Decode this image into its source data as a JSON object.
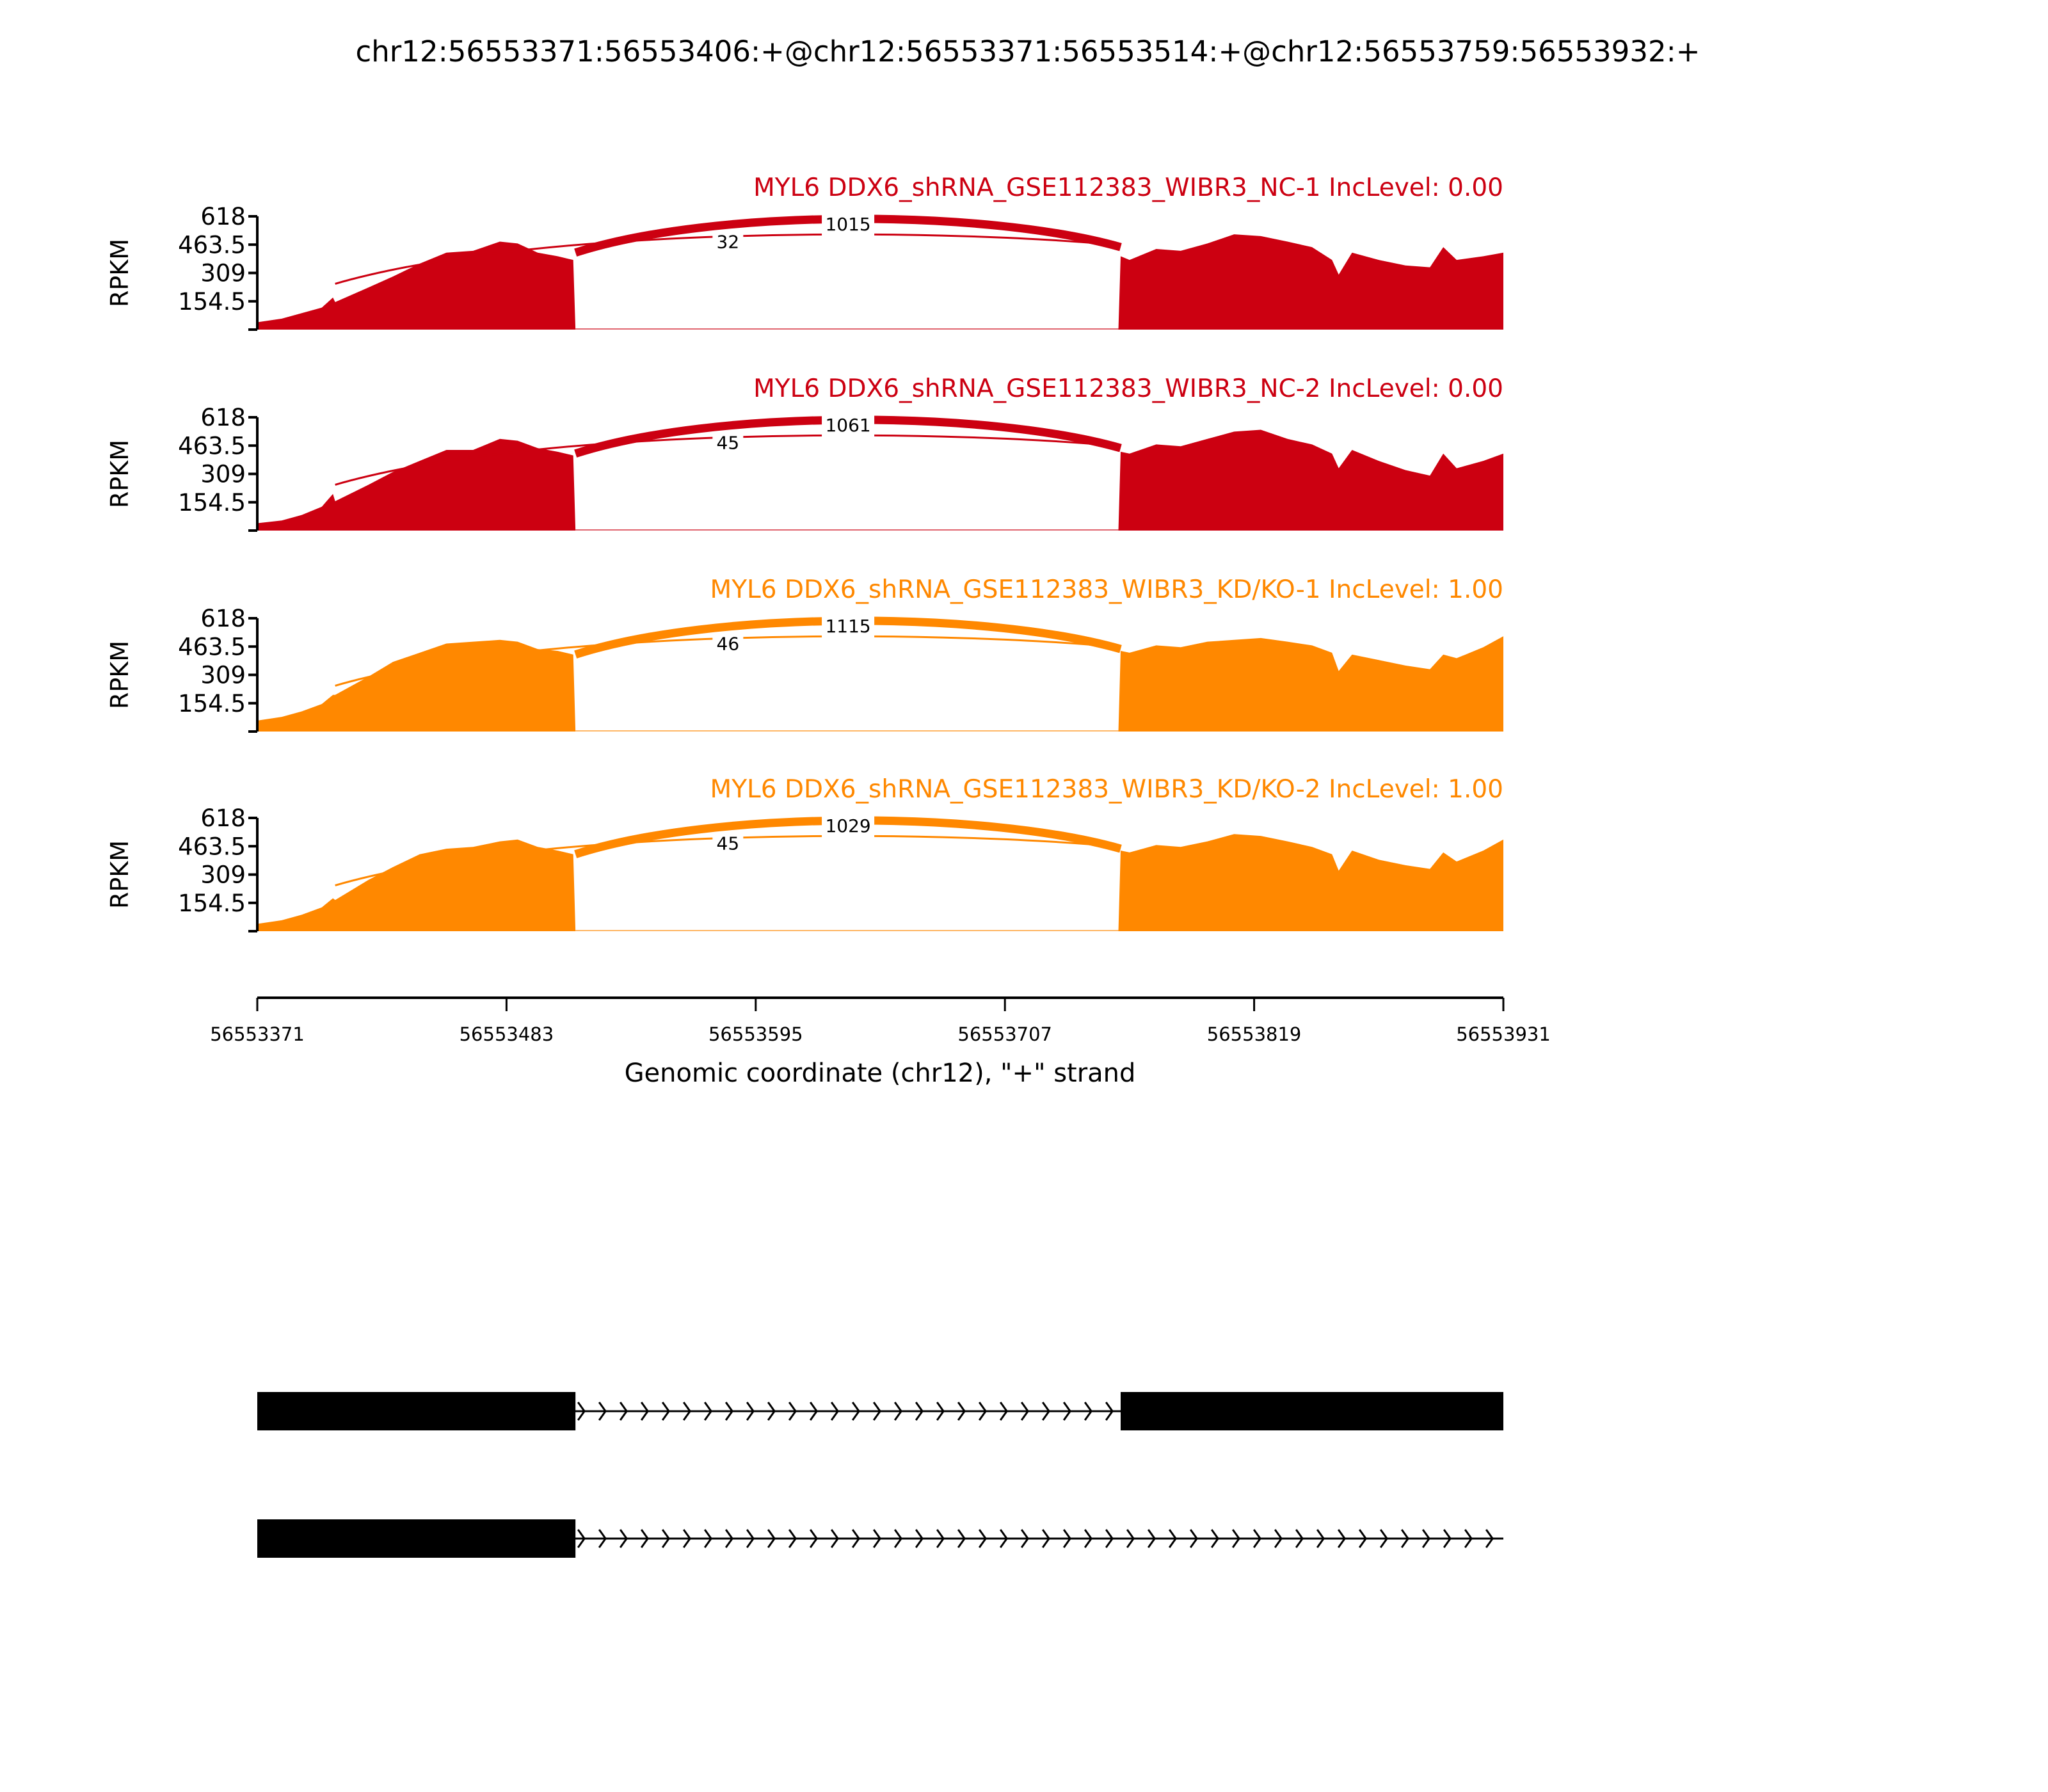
{
  "chart_data": {
    "type": "area",
    "title": "chr12:56553371:56553406:+@chr12:56553371:56553514:+@chr12:56553759:56553932:+",
    "xlabel": "Genomic coordinate (chr12), \"+\" strand",
    "ylabel": "RPKM",
    "xlim": [
      56553371,
      56553931
    ],
    "ylim": [
      0,
      618
    ],
    "xticks": [
      "56553371",
      "56553483",
      "56553595",
      "56553707",
      "56553819",
      "56553931"
    ],
    "yticks": [
      "154.5",
      "309",
      "463.5",
      "618"
    ],
    "colors": {
      "NC": "#CC0011",
      "KD/KO": "#FF8800"
    },
    "samples": [
      {
        "title": "MYL6 DDX6_shRNA_GSE112383_WIBR3_NC-1 IncLevel: 0.00",
        "color": "#CC0011",
        "junctions": [
          {
            "start": 56553406,
            "end": 56553759,
            "count": "32"
          },
          {
            "start": 56553514,
            "end": 56553759,
            "count": "1015"
          }
        ],
        "coverage": [
          [
            56553371,
            40
          ],
          [
            56553382,
            60
          ],
          [
            56553391,
            90
          ],
          [
            56553400,
            120
          ],
          [
            56553405,
            175
          ],
          [
            56553406,
            150
          ],
          [
            56553421,
            230
          ],
          [
            56553432,
            290
          ],
          [
            56553444,
            360
          ],
          [
            56553456,
            420
          ],
          [
            56553468,
            430
          ],
          [
            56553480,
            480
          ],
          [
            56553488,
            470
          ],
          [
            56553497,
            420
          ],
          [
            56553506,
            400
          ],
          [
            56553513,
            380
          ],
          [
            56553514,
            0
          ],
          [
            56553758,
            0
          ],
          [
            56553759,
            400
          ],
          [
            56553763,
            380
          ],
          [
            56553775,
            440
          ],
          [
            56553786,
            430
          ],
          [
            56553798,
            470
          ],
          [
            56553810,
            520
          ],
          [
            56553822,
            510
          ],
          [
            56553834,
            480
          ],
          [
            56553845,
            450
          ],
          [
            56553854,
            380
          ],
          [
            56553857,
            300
          ],
          [
            56553863,
            420
          ],
          [
            56553875,
            380
          ],
          [
            56553887,
            350
          ],
          [
            56553898,
            340
          ],
          [
            56553904,
            450
          ],
          [
            56553910,
            380
          ],
          [
            56553922,
            400
          ],
          [
            56553931,
            420
          ]
        ]
      },
      {
        "title": "MYL6 DDX6_shRNA_GSE112383_WIBR3_NC-2 IncLevel: 0.00",
        "color": "#CC0011",
        "junctions": [
          {
            "start": 56553406,
            "end": 56553759,
            "count": "45"
          },
          {
            "start": 56553514,
            "end": 56553759,
            "count": "1061"
          }
        ],
        "coverage": [
          [
            56553371,
            40
          ],
          [
            56553382,
            55
          ],
          [
            56553391,
            85
          ],
          [
            56553400,
            130
          ],
          [
            56553405,
            200
          ],
          [
            56553406,
            160
          ],
          [
            56553421,
            250
          ],
          [
            56553432,
            320
          ],
          [
            56553444,
            380
          ],
          [
            56553456,
            440
          ],
          [
            56553468,
            440
          ],
          [
            56553480,
            500
          ],
          [
            56553488,
            490
          ],
          [
            56553497,
            450
          ],
          [
            56553506,
            430
          ],
          [
            56553513,
            410
          ],
          [
            56553514,
            0
          ],
          [
            56553758,
            0
          ],
          [
            56553759,
            430
          ],
          [
            56553763,
            420
          ],
          [
            56553775,
            470
          ],
          [
            56553786,
            460
          ],
          [
            56553798,
            500
          ],
          [
            56553810,
            540
          ],
          [
            56553822,
            550
          ],
          [
            56553834,
            500
          ],
          [
            56553845,
            470
          ],
          [
            56553854,
            420
          ],
          [
            56553857,
            340
          ],
          [
            56553863,
            440
          ],
          [
            56553875,
            380
          ],
          [
            56553887,
            330
          ],
          [
            56553898,
            300
          ],
          [
            56553904,
            420
          ],
          [
            56553910,
            340
          ],
          [
            56553922,
            380
          ],
          [
            56553931,
            420
          ]
        ]
      },
      {
        "title": "MYL6 DDX6_shRNA_GSE112383_WIBR3_KD/KO-1 IncLevel: 1.00",
        "color": "#FF8800",
        "junctions": [
          {
            "start": 56553406,
            "end": 56553759,
            "count": "46"
          },
          {
            "start": 56553514,
            "end": 56553759,
            "count": "1115"
          }
        ],
        "coverage": [
          [
            56553371,
            60
          ],
          [
            56553382,
            80
          ],
          [
            56553391,
            110
          ],
          [
            56553400,
            150
          ],
          [
            56553405,
            200
          ],
          [
            56553406,
            200
          ],
          [
            56553421,
            300
          ],
          [
            56553432,
            380
          ],
          [
            56553444,
            430
          ],
          [
            56553456,
            480
          ],
          [
            56553468,
            490
          ],
          [
            56553480,
            500
          ],
          [
            56553488,
            490
          ],
          [
            56553497,
            450
          ],
          [
            56553506,
            440
          ],
          [
            56553513,
            420
          ],
          [
            56553514,
            0
          ],
          [
            56553758,
            0
          ],
          [
            56553759,
            440
          ],
          [
            56553763,
            430
          ],
          [
            56553775,
            470
          ],
          [
            56553786,
            460
          ],
          [
            56553798,
            490
          ],
          [
            56553810,
            500
          ],
          [
            56553822,
            510
          ],
          [
            56553834,
            490
          ],
          [
            56553845,
            470
          ],
          [
            56553854,
            430
          ],
          [
            56553857,
            330
          ],
          [
            56553863,
            420
          ],
          [
            56553875,
            390
          ],
          [
            56553887,
            360
          ],
          [
            56553898,
            340
          ],
          [
            56553904,
            420
          ],
          [
            56553910,
            400
          ],
          [
            56553922,
            460
          ],
          [
            56553931,
            520
          ]
        ]
      },
      {
        "title": "MYL6 DDX6_shRNA_GSE112383_WIBR3_KD/KO-2 IncLevel: 1.00",
        "color": "#FF8800",
        "junctions": [
          {
            "start": 56553406,
            "end": 56553759,
            "count": "45"
          },
          {
            "start": 56553514,
            "end": 56553759,
            "count": "1029"
          }
        ],
        "coverage": [
          [
            56553371,
            40
          ],
          [
            56553382,
            60
          ],
          [
            56553391,
            90
          ],
          [
            56553400,
            130
          ],
          [
            56553405,
            180
          ],
          [
            56553406,
            170
          ],
          [
            56553421,
            280
          ],
          [
            56553432,
            350
          ],
          [
            56553444,
            420
          ],
          [
            56553456,
            450
          ],
          [
            56553468,
            460
          ],
          [
            56553480,
            490
          ],
          [
            56553488,
            500
          ],
          [
            56553497,
            460
          ],
          [
            56553506,
            440
          ],
          [
            56553513,
            420
          ],
          [
            56553514,
            0
          ],
          [
            56553758,
            0
          ],
          [
            56553759,
            440
          ],
          [
            56553763,
            430
          ],
          [
            56553775,
            470
          ],
          [
            56553786,
            460
          ],
          [
            56553798,
            490
          ],
          [
            56553810,
            530
          ],
          [
            56553822,
            520
          ],
          [
            56553834,
            490
          ],
          [
            56553845,
            460
          ],
          [
            56553854,
            420
          ],
          [
            56553857,
            330
          ],
          [
            56553863,
            440
          ],
          [
            56553875,
            390
          ],
          [
            56553887,
            360
          ],
          [
            56553898,
            340
          ],
          [
            56553904,
            430
          ],
          [
            56553910,
            380
          ],
          [
            56553922,
            440
          ],
          [
            56553931,
            500
          ]
        ]
      }
    ],
    "gene_models": [
      {
        "exons": [
          [
            56553371,
            56553514
          ],
          [
            56553759,
            56553931
          ]
        ],
        "span": [
          56553371,
          56553931
        ],
        "strand": "+"
      },
      {
        "exons": [
          [
            56553371,
            56553514
          ]
        ],
        "span": [
          56553371,
          56553931
        ],
        "strand": "+"
      }
    ]
  }
}
